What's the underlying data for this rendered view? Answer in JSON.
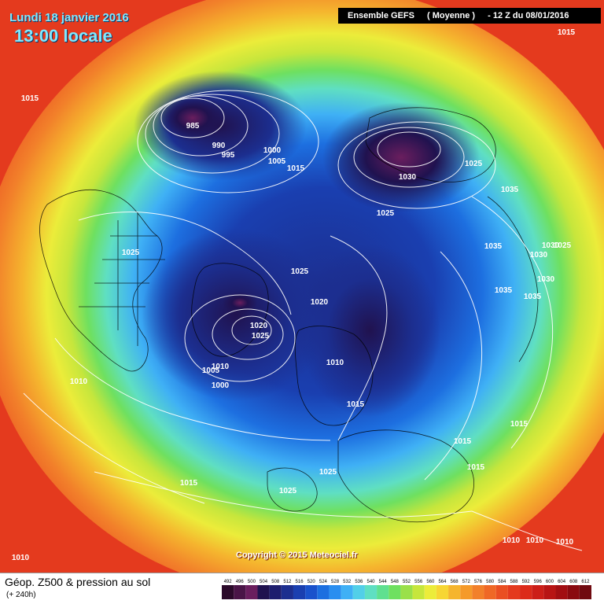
{
  "header": {
    "date": "Lundi 18 janvier 2016",
    "local_time": "13:00 locale",
    "model_name": "Ensemble GEFS",
    "model_variant": "( Moyenne )",
    "run": "-  12 Z du 08/01/2016"
  },
  "footer": {
    "title": "Géop. Z500 & pression au sol",
    "forecast_hour": "(+ 240h)",
    "copyright": "Copyright © 2015 Meteociel.fr"
  },
  "color_scale": {
    "values": [
      492,
      496,
      500,
      504,
      508,
      512,
      516,
      520,
      524,
      528,
      532,
      536,
      540,
      544,
      548,
      552,
      556,
      560,
      564,
      568,
      572,
      576,
      580,
      584,
      588,
      592,
      596,
      600,
      604,
      608,
      612
    ],
    "colors": [
      "#2b0a2a",
      "#4a1547",
      "#6a1e5e",
      "#20124f",
      "#1e1e6e",
      "#1c2e8f",
      "#1a3fb0",
      "#1a52cc",
      "#1d6fe0",
      "#2a8ef0",
      "#3fb0f5",
      "#52cfe8",
      "#5fdfc2",
      "#5fe090",
      "#6ee060",
      "#9ae04a",
      "#c6e63c",
      "#ecec3a",
      "#f7d634",
      "#f5b52e",
      "#f59a2a",
      "#f2802a",
      "#ef6826",
      "#ea4f22",
      "#e43a1e",
      "#dc2a1a",
      "#cc1e18",
      "#b81414",
      "#a20e12",
      "#8a0a10",
      "#700a10"
    ]
  },
  "pressure_labels": [
    {
      "text": "1015",
      "pos": "left-top"
    },
    {
      "text": "985",
      "pos": "pacific-low"
    },
    {
      "text": "990",
      "pos": "pacific-low"
    },
    {
      "text": "995",
      "pos": "pacific-low"
    },
    {
      "text": "1000",
      "pos": "pacific"
    },
    {
      "text": "1005",
      "pos": "pacific"
    },
    {
      "text": "1015",
      "pos": "pacific"
    },
    {
      "text": "1030",
      "pos": "siberia-high"
    },
    {
      "text": "1025",
      "pos": "siberia"
    },
    {
      "text": "1025",
      "pos": "siberia-east"
    },
    {
      "text": "1035",
      "pos": "asia"
    },
    {
      "text": "1035",
      "pos": "asia"
    },
    {
      "text": "1030",
      "pos": "asia"
    },
    {
      "text": "1030",
      "pos": "asia"
    },
    {
      "text": "1025",
      "pos": "asia"
    },
    {
      "text": "1030",
      "pos": "asia"
    },
    {
      "text": "1035",
      "pos": "asia"
    },
    {
      "text": "1035",
      "pos": "asia"
    },
    {
      "text": "1025",
      "pos": "north-america"
    },
    {
      "text": "1025",
      "pos": "arctic"
    },
    {
      "text": "1020",
      "pos": "arctic"
    },
    {
      "text": "1020",
      "pos": "greenland"
    },
    {
      "text": "1025",
      "pos": "greenland"
    },
    {
      "text": "1005",
      "pos": "atlantic"
    },
    {
      "text": "1010",
      "pos": "atlantic"
    },
    {
      "text": "1000",
      "pos": "atlantic"
    },
    {
      "text": "1010",
      "pos": "scandinavia"
    },
    {
      "text": "1015",
      "pos": "europe"
    },
    {
      "text": "1010",
      "pos": "atlantic-south"
    },
    {
      "text": "1015",
      "pos": "europe-south"
    },
    {
      "text": "1015",
      "pos": "asia-south"
    },
    {
      "text": "1015",
      "pos": "asia-south"
    },
    {
      "text": "1025",
      "pos": "europe"
    },
    {
      "text": "1015",
      "pos": "africa"
    },
    {
      "text": "1025",
      "pos": "mediterranean"
    },
    {
      "text": "1010",
      "pos": "bottom-left"
    },
    {
      "text": "1010",
      "pos": "bottom-right"
    },
    {
      "text": "1010",
      "pos": "bottom-right"
    },
    {
      "text": "1010",
      "pos": "bottom-right"
    },
    {
      "text": "1015",
      "pos": "top-right"
    }
  ]
}
